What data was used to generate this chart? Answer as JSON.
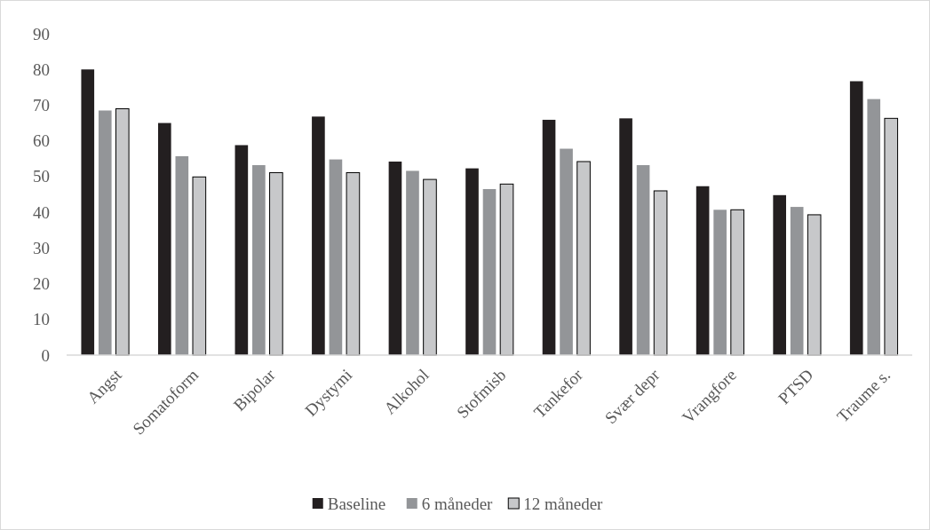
{
  "chart_data": {
    "type": "bar",
    "categories": [
      "Angst",
      "Somatoform",
      "Bipolar",
      "Dystymi",
      "Alkohol",
      "Stofmisb",
      "Tankefor",
      "Svær depr",
      "Vrangfore",
      "PTSD",
      "Traume s."
    ],
    "series": [
      {
        "name": "Baseline",
        "color": "#231f20",
        "values": [
          80,
          65,
          58.8,
          66.8,
          54.2,
          52.3,
          65.9,
          66.3,
          47.3,
          44.8,
          76.7
        ]
      },
      {
        "name": "6 måneder",
        "color": "#939598",
        "values": [
          68.5,
          55.7,
          53.2,
          54.8,
          51.6,
          46.5,
          57.8,
          53.2,
          40.7,
          41.5,
          71.7
        ]
      },
      {
        "name": "12 måneder",
        "color": "#c7c8ca",
        "values": [
          69,
          49.9,
          51.1,
          51.1,
          49.2,
          47.9,
          54.2,
          46,
          40.7,
          39.3,
          66.3
        ]
      }
    ],
    "ylim": [
      0,
      90
    ],
    "yticks": [
      0,
      10,
      20,
      30,
      40,
      50,
      60,
      70,
      80,
      90
    ],
    "grid": false,
    "legend": "bottom"
  }
}
